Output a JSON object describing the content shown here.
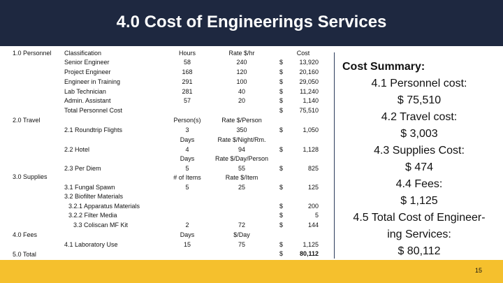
{
  "title": "4.0 Cost of Engineerings Services",
  "sections": {
    "personnel": "1.0 Personnel",
    "travel": "2.0 Travel",
    "supplies": "3.0 Supplies",
    "fees": "4.0 Fees",
    "total": "5.0 Total"
  },
  "personnel": {
    "headers": {
      "classification": "Classification",
      "hours": "Hours",
      "rate": "Rate $/hr",
      "cost": "Cost"
    },
    "rows": [
      {
        "classification": "Senior Engineer",
        "hours": "58",
        "rate": "240",
        "dollar": "$",
        "cost": "13,920"
      },
      {
        "classification": "Project Engineer",
        "hours": "168",
        "rate": "120",
        "dollar": "$",
        "cost": "20,160"
      },
      {
        "classification": "Engineer in Training",
        "hours": "291",
        "rate": "100",
        "dollar": "$",
        "cost": "29,050"
      },
      {
        "classification": "Lab Technician",
        "hours": "281",
        "rate": "40",
        "dollar": "$",
        "cost": "11,240"
      },
      {
        "classification": "Admin. Assistant",
        "hours": "57",
        "rate": "20",
        "dollar": "$",
        "cost": "1,140"
      },
      {
        "classification": "Total Personnel Cost",
        "hours": "",
        "rate": "",
        "dollar": "$",
        "cost": "75,510"
      }
    ]
  },
  "travel": {
    "roundtrip": {
      "label": "2.1 Roundtrip Flights",
      "unit_header": "Person(s)",
      "unit_value": "3",
      "rate_header": "Rate $/Person",
      "rate_value": "350",
      "dollar": "$",
      "cost": "1,050"
    },
    "hotel": {
      "label": "2.2 Hotel",
      "unit_header": "Days",
      "unit_value": "4",
      "rate_header": "Rate $/Night/Rm.",
      "rate_value": "94",
      "dollar": "$",
      "cost": "1,128"
    },
    "per_diem": {
      "label": "2.3 Per Diem",
      "unit_header": "Days",
      "unit_value": "5",
      "rate_header": "Rate $/Day/Person",
      "rate_value": "55",
      "dollar": "$",
      "cost": "825"
    }
  },
  "supplies": {
    "unit_header": "# of Items",
    "rate_header": "Rate $/Item",
    "fungal": {
      "label": "3.1 Fungal Spawn",
      "unit_value": "5",
      "rate_value": "25",
      "dollar": "$",
      "cost": "125"
    },
    "biofilter": {
      "label": "3.2 Biofilter Materials"
    },
    "apparatus": {
      "label": "3.2.1 Apparatus Materials",
      "dollar": "$",
      "cost": "200"
    },
    "filter": {
      "label": "3.2.2 Filter Media",
      "dollar": "$",
      "cost": "5"
    },
    "coliscan": {
      "label": "3.3 Coliscan MF Kit",
      "unit_value": "2",
      "rate_value": "72",
      "dollar": "$",
      "cost": "144"
    }
  },
  "fees": {
    "lab": {
      "label": "4.1 Laboratory Use",
      "unit_header": "Days",
      "unit_value": "15",
      "rate_header": "$/Day",
      "rate_value": "75",
      "dollar": "$",
      "cost": "1,125"
    }
  },
  "total": {
    "dollar": "$",
    "cost": "80,112"
  },
  "summary": {
    "heading": "Cost Summary:",
    "personnel_label": "4.1 Personnel cost:",
    "personnel_value": "$ 75,510",
    "travel_label": "4.2 Travel cost:",
    "travel_value": "$ 3,003",
    "supplies_label": "4.3 Supplies Cost:",
    "supplies_value": "$ 474",
    "fees_label": "4.4 Fees:",
    "fees_value": "$ 1,125",
    "total_label_1": "4.5 Total Cost of Engineer-",
    "total_label_2": "ing Services:",
    "total_value": "$ 80,112"
  },
  "page_number": "15",
  "colors": {
    "header_bg": "#1e2840",
    "footer_bg": "#f5c02d",
    "divider": "#2a3a5a"
  }
}
